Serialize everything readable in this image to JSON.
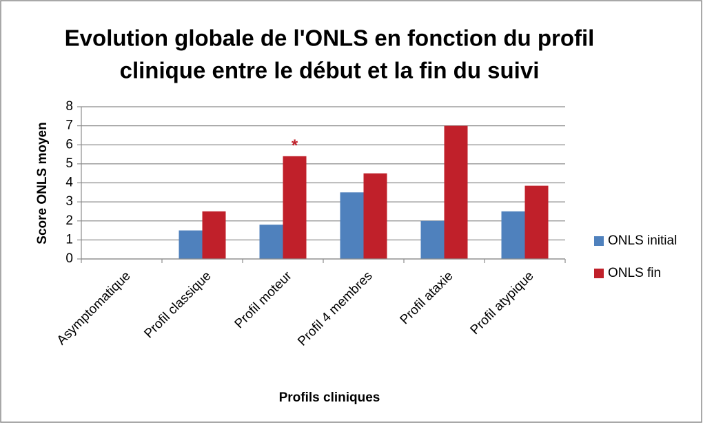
{
  "chart_data": {
    "type": "bar",
    "title": [
      "Evolution globale de l'ONLS en fonction du profil",
      "clinique entre le début et la fin du suivi"
    ],
    "x_label": "Profils cliniques",
    "y_label": "Score ONLS moyen",
    "categories": [
      "Asymptomatique",
      "Profil classique",
      "Profil moteur",
      "Profil 4 membres",
      "Profil ataxie",
      "Profil atypique"
    ],
    "series": [
      {
        "name": "ONLS initial",
        "color": "#4f81bd",
        "values": [
          0,
          1.5,
          1.8,
          3.5,
          2,
          2.5
        ]
      },
      {
        "name": "ONLS fin",
        "color": "#c0202a",
        "values": [
          0,
          2.5,
          5.4,
          4.5,
          7,
          3.85
        ]
      }
    ],
    "ylim": [
      0,
      8
    ],
    "yticks": [
      0,
      1,
      2,
      3,
      4,
      5,
      6,
      7,
      8
    ],
    "grid": true,
    "legend": "right",
    "annotations": [
      {
        "text": "*",
        "x": "Profil moteur",
        "series": "ONLS fin",
        "color": "#c0202a"
      }
    ]
  }
}
